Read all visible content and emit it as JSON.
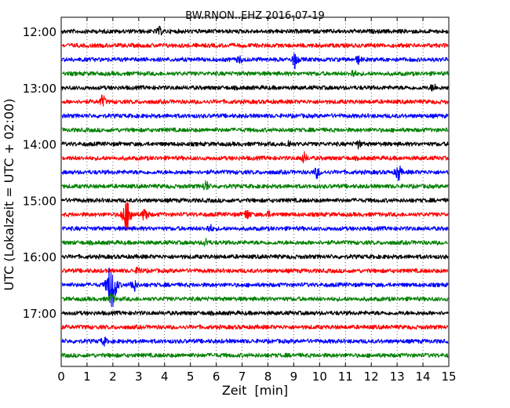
{
  "chart_data": {
    "type": "line",
    "title": "BW.RNON..EHZ 2016-07-19",
    "xlabel": "Zeit  [min]",
    "ylabel": "UTC (Lokalzeit = UTC + 02:00)",
    "xlim": [
      0,
      15
    ],
    "x_ticks": [
      0,
      1,
      2,
      3,
      4,
      5,
      6,
      7,
      8,
      9,
      10,
      11,
      12,
      13,
      14,
      15
    ],
    "x_grid": "dotted vertical at each minute",
    "y_tick_labels": [
      "12:00",
      "13:00",
      "14:00",
      "15:00",
      "16:00",
      "17:00"
    ],
    "trace_interval_min": 15,
    "trace_colors": [
      "#000000",
      "#ff0000",
      "#0000ff",
      "#008000"
    ],
    "traces": [
      {
        "start": "12:00",
        "color": "#000000",
        "events": [
          [
            3.8,
            4
          ]
        ]
      },
      {
        "start": "12:15",
        "color": "#ff0000",
        "events": []
      },
      {
        "start": "12:30",
        "color": "#0000ff",
        "events": [
          [
            6.9,
            3
          ],
          [
            9.05,
            10
          ],
          [
            11.5,
            4
          ]
        ]
      },
      {
        "start": "12:45",
        "color": "#008000",
        "events": [
          [
            11.3,
            4
          ]
        ]
      },
      {
        "start": "13:00",
        "color": "#000000",
        "events": [
          [
            14.4,
            4
          ]
        ]
      },
      {
        "start": "13:15",
        "color": "#ff0000",
        "events": [
          [
            1.6,
            7
          ]
        ]
      },
      {
        "start": "13:30",
        "color": "#0000ff",
        "events": []
      },
      {
        "start": "13:45",
        "color": "#008000",
        "events": []
      },
      {
        "start": "14:00",
        "color": "#000000",
        "events": [
          [
            8.8,
            4
          ],
          [
            11.5,
            4
          ]
        ]
      },
      {
        "start": "14:15",
        "color": "#ff0000",
        "events": [
          [
            9.4,
            6
          ]
        ]
      },
      {
        "start": "14:30",
        "color": "#0000ff",
        "events": [
          [
            9.9,
            6
          ],
          [
            13.05,
            10
          ]
        ]
      },
      {
        "start": "14:45",
        "color": "#008000",
        "events": [
          [
            5.6,
            6
          ]
        ]
      },
      {
        "start": "15:00",
        "color": "#000000",
        "events": []
      },
      {
        "start": "15:15",
        "color": "#ff0000",
        "events": [
          [
            2.55,
            18
          ],
          [
            3.25,
            9
          ],
          [
            7.2,
            6
          ],
          [
            8.0,
            3
          ]
        ]
      },
      {
        "start": "15:30",
        "color": "#0000ff",
        "events": [
          [
            5.75,
            4
          ]
        ]
      },
      {
        "start": "15:45",
        "color": "#008000",
        "events": [
          [
            5.6,
            4
          ]
        ]
      },
      {
        "start": "16:00",
        "color": "#000000",
        "events": []
      },
      {
        "start": "16:15",
        "color": "#ff0000",
        "events": [
          [
            3.0,
            4
          ]
        ]
      },
      {
        "start": "16:30",
        "color": "#0000ff",
        "events": [
          [
            1.95,
            30
          ],
          [
            2.8,
            8
          ]
        ]
      },
      {
        "start": "16:45",
        "color": "#008000",
        "events": [
          [
            1.95,
            6
          ]
        ]
      },
      {
        "start": "17:00",
        "color": "#000000",
        "events": []
      },
      {
        "start": "17:15",
        "color": "#ff0000",
        "events": []
      },
      {
        "start": "17:30",
        "color": "#0000ff",
        "events": [
          [
            1.65,
            4
          ]
        ]
      },
      {
        "start": "17:45",
        "color": "#008000",
        "events": []
      }
    ]
  }
}
